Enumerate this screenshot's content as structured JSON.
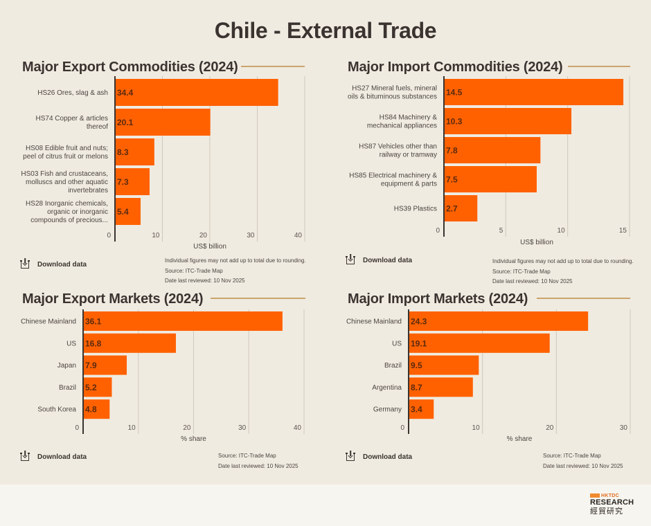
{
  "page": {
    "title": "Chile - External Trade"
  },
  "panels": [
    {
      "title": "Major Export Commodities (2024)",
      "download_label": "Download data",
      "notes": [
        "Individual figures may not add up to total due to rounding.",
        "Source: ITC-Trade Map",
        "Date last reviewed: 10 Nov 2025"
      ]
    },
    {
      "title": "Major Import Commodities (2024)",
      "download_label": "Download data",
      "notes": [
        "Individual figures may not add up to total due to rounding.",
        "Source: ITC-Trade Map",
        "Date last reviewed: 10 Nov 2025"
      ]
    },
    {
      "title": "Major Export Markets (2024)",
      "download_label": "Download data",
      "notes": [
        "Source: ITC-Trade Map",
        "Date last reviewed: 10 Nov 2025"
      ]
    },
    {
      "title": "Major Import Markets (2024)",
      "download_label": "Download data",
      "notes": [
        "Source: ITC-Trade Map",
        "Date last reviewed: 10 Nov 2025"
      ]
    }
  ],
  "brand": {
    "hktdc": "HKTDC",
    "research": "RESEARCH",
    "cjk": "經貿研究",
    "bar_color": "#ff6100",
    "rule_color": "#c9a46c"
  },
  "chart_data": [
    {
      "type": "bar",
      "orientation": "horizontal",
      "title": "Major Export Commodities (2024)",
      "categories": [
        [
          "HS26 Ores, slag & ash"
        ],
        [
          "HS74 Copper & articles",
          "thereof"
        ],
        [
          "HS08 Edible fruit and nuts;",
          "peel of citrus fruit or melons"
        ],
        [
          "HS03 Fish and crustaceans,",
          "molluscs and other aquatic",
          "invertebrates"
        ],
        [
          "HS28 Inorganic chemicals,",
          "organic or inorganic",
          "compounds of precious..."
        ]
      ],
      "values": [
        34.4,
        20.1,
        8.3,
        7.3,
        5.4
      ],
      "value_labels": [
        "34.4",
        "20.1",
        "8.3",
        "7.3",
        "5.4"
      ],
      "xlabel": "US$ billion",
      "xlim": [
        0,
        40
      ],
      "ticks": [
        0,
        10,
        20,
        30,
        40
      ],
      "grid": true
    },
    {
      "type": "bar",
      "orientation": "horizontal",
      "title": "Major Import Commodities (2024)",
      "categories": [
        [
          "HS27 Mineral fuels, mineral",
          "oils & bituminous substances"
        ],
        [
          "HS84 Machinery &",
          "mechanical appliances"
        ],
        [
          "HS87 Vehicles other than",
          "railway or tramway"
        ],
        [
          "HS85 Electrical machinery &",
          "equipment & parts"
        ],
        [
          "HS39 Plastics"
        ]
      ],
      "values": [
        14.5,
        10.3,
        7.8,
        7.5,
        2.7
      ],
      "value_labels": [
        "14.5",
        "10.3",
        "7.8",
        "7.5",
        "2.7"
      ],
      "xlabel": "US$ billion",
      "xlim": [
        0,
        15
      ],
      "ticks": [
        0,
        5,
        10,
        15
      ],
      "grid": true
    },
    {
      "type": "bar",
      "orientation": "horizontal",
      "title": "Major Export Markets (2024)",
      "categories": [
        [
          "Chinese Mainland"
        ],
        [
          "US"
        ],
        [
          "Japan"
        ],
        [
          "Brazil"
        ],
        [
          "South Korea"
        ]
      ],
      "values": [
        36.1,
        16.8,
        7.9,
        5.2,
        4.8
      ],
      "value_labels": [
        "36.1",
        "16.8",
        "7.9",
        "5.2",
        "4.8"
      ],
      "xlabel": "% share",
      "xlim": [
        0,
        40
      ],
      "ticks": [
        0,
        10,
        20,
        30,
        40
      ],
      "grid": true
    },
    {
      "type": "bar",
      "orientation": "horizontal",
      "title": "Major Import Markets (2024)",
      "categories": [
        [
          "Chinese Mainland"
        ],
        [
          "US"
        ],
        [
          "Brazil"
        ],
        [
          "Argentina"
        ],
        [
          "Germany"
        ]
      ],
      "values": [
        24.3,
        19.1,
        9.5,
        8.7,
        3.4
      ],
      "value_labels": [
        "24.3",
        "19.1",
        "9.5",
        "8.7",
        "3.4"
      ],
      "xlabel": "% share",
      "xlim": [
        0,
        30
      ],
      "ticks": [
        0,
        10,
        20,
        30
      ],
      "grid": true
    }
  ]
}
